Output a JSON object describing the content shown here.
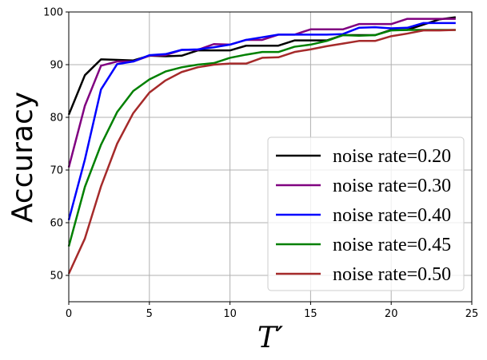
{
  "chart_data": {
    "type": "line",
    "xlabel": "T′",
    "ylabel": "Accuracy",
    "xlim": [
      0,
      25
    ],
    "ylim": [
      45,
      100
    ],
    "xticks": [
      0,
      5,
      10,
      15,
      20,
      25
    ],
    "yticks": [
      50,
      60,
      70,
      80,
      90,
      100
    ],
    "grid": true,
    "legend_position": "lower-right",
    "x": [
      0,
      1,
      2,
      3,
      4,
      5,
      6,
      7,
      8,
      9,
      10,
      11,
      12,
      13,
      14,
      15,
      16,
      17,
      18,
      19,
      20,
      21,
      22,
      23,
      24
    ],
    "series": [
      {
        "name": "noise rate=0.20",
        "color": "#000000",
        "values": [
          80.5,
          88.0,
          91.0,
          90.9,
          90.8,
          91.7,
          91.6,
          91.7,
          92.7,
          92.7,
          92.7,
          93.6,
          93.6,
          93.6,
          94.6,
          94.6,
          94.6,
          95.6,
          95.6,
          95.6,
          96.6,
          96.6,
          97.6,
          98.6,
          99.0
        ]
      },
      {
        "name": "noise rate=0.30",
        "color": "#800080",
        "values": [
          70.5,
          82.2,
          89.8,
          90.6,
          90.6,
          91.7,
          91.8,
          92.8,
          92.8,
          93.9,
          93.8,
          94.7,
          94.7,
          95.7,
          95.7,
          96.7,
          96.7,
          96.7,
          97.7,
          97.7,
          97.7,
          98.7,
          98.7,
          98.7,
          98.7
        ]
      },
      {
        "name": "noise rate=0.40",
        "color": "#0000ff",
        "values": [
          60.5,
          72.0,
          85.3,
          90.1,
          90.6,
          91.8,
          92.0,
          92.8,
          92.9,
          93.3,
          93.8,
          94.7,
          95.2,
          95.7,
          95.7,
          95.7,
          95.7,
          95.8,
          97.0,
          97.1,
          96.9,
          97.0,
          97.9,
          97.9,
          97.9
        ]
      },
      {
        "name": "noise rate=0.45",
        "color": "#008000",
        "values": [
          55.5,
          66.8,
          74.8,
          81.0,
          85.0,
          87.2,
          88.7,
          89.5,
          90.0,
          90.3,
          91.3,
          91.9,
          92.4,
          92.4,
          93.4,
          93.8,
          94.5,
          95.6,
          95.5,
          95.6,
          96.5,
          96.6,
          96.6,
          96.6,
          96.6
        ]
      },
      {
        "name": "noise rate=0.50",
        "color": "#a52a2a",
        "values": [
          50.3,
          57.0,
          66.9,
          75.0,
          80.8,
          84.7,
          87.0,
          88.6,
          89.5,
          90.0,
          90.2,
          90.2,
          91.3,
          91.4,
          92.4,
          92.9,
          93.5,
          94.0,
          94.5,
          94.5,
          95.4,
          95.9,
          96.5,
          96.5,
          96.6
        ]
      }
    ]
  }
}
